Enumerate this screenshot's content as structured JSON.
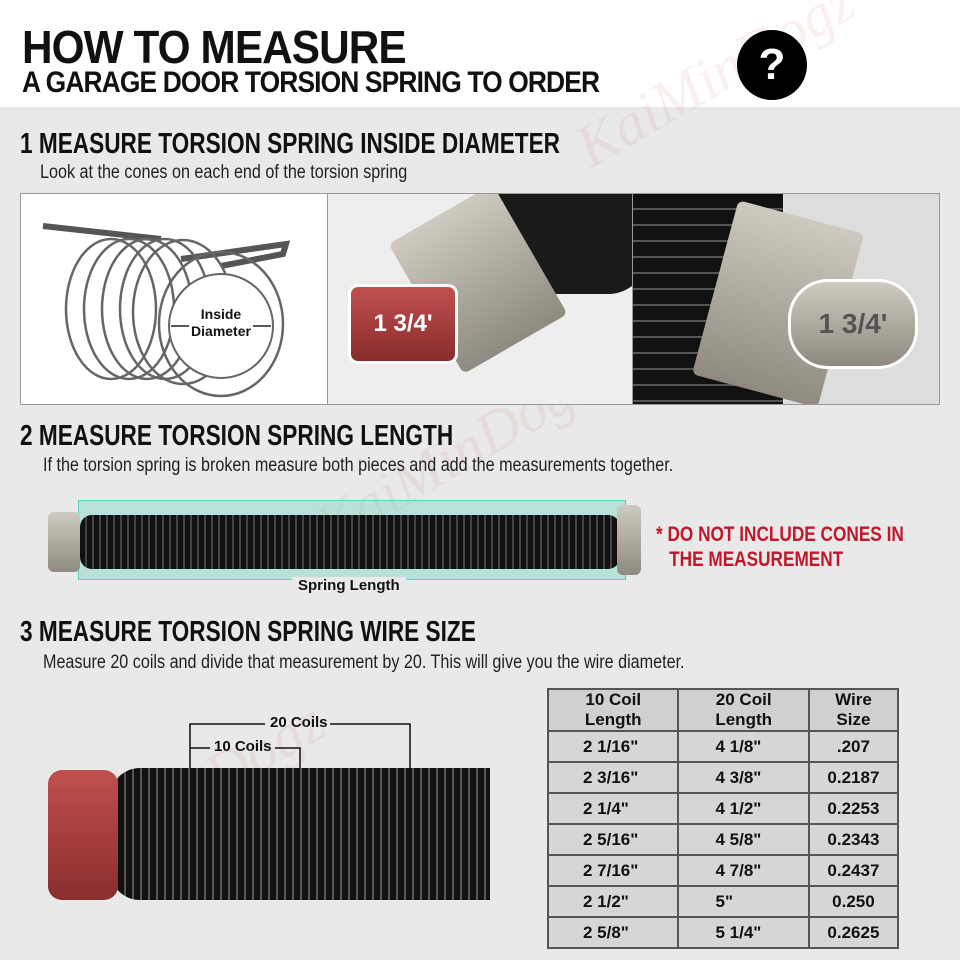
{
  "header": {
    "title": "HOW TO MEASURE",
    "subtitle": "A GARAGE DOOR TORSION SPRING TO ORDER",
    "help_icon": "question-mark-icon",
    "help_glyph": "?"
  },
  "watermark": "KaiMinDogz",
  "step1": {
    "heading": "1 MEASURE TORSION SPRING INSIDE DIAMETER",
    "subtitle": "Look at the cones on each end of the torsion spring",
    "diagram_label_line1": "Inside",
    "diagram_label_line2": "Diameter",
    "cone_label": "1 3/4'",
    "cone_label_2": "1 3/4'"
  },
  "step2": {
    "heading": "2 MEASURE TORSION SPRING LENGTH",
    "subtitle": "If the torsion spring is broken measure both pieces and add the measurements together.",
    "length_label": "Spring Length",
    "note_line1": "* DO NOT INCLUDE CONES IN",
    "note_line2": "THE MEASUREMENT",
    "note_color": "#c0182a",
    "highlight_color": "#5fd3c0"
  },
  "step3": {
    "heading": "3 MEASURE TORSION SPRING WIRE SIZE",
    "subtitle": "Measure 20 coils and divide that measurement by 20. This will give you the wire diameter.",
    "label_20": "20 Coils",
    "label_10": "10 Coils",
    "table": {
      "headers": [
        "10 Coil Length",
        "20 Coil Length",
        "Wire Size"
      ],
      "rows": [
        [
          "2  1/16\"",
          "4  1/8\"",
          ".207"
        ],
        [
          "2  3/16\"",
          "4  3/8\"",
          "0.2187"
        ],
        [
          "2  1/4\"",
          "4  1/2\"",
          "0.2253"
        ],
        [
          "2  5/16\"",
          "4  5/8\"",
          "0.2343"
        ],
        [
          "2  7/16\"",
          "4  7/8\"",
          "0.2437"
        ],
        [
          "2  1/2\"",
          "5\"",
          "0.250"
        ],
        [
          "2  5/8\"",
          "5  1/4\"",
          "0.2625"
        ]
      ]
    }
  }
}
